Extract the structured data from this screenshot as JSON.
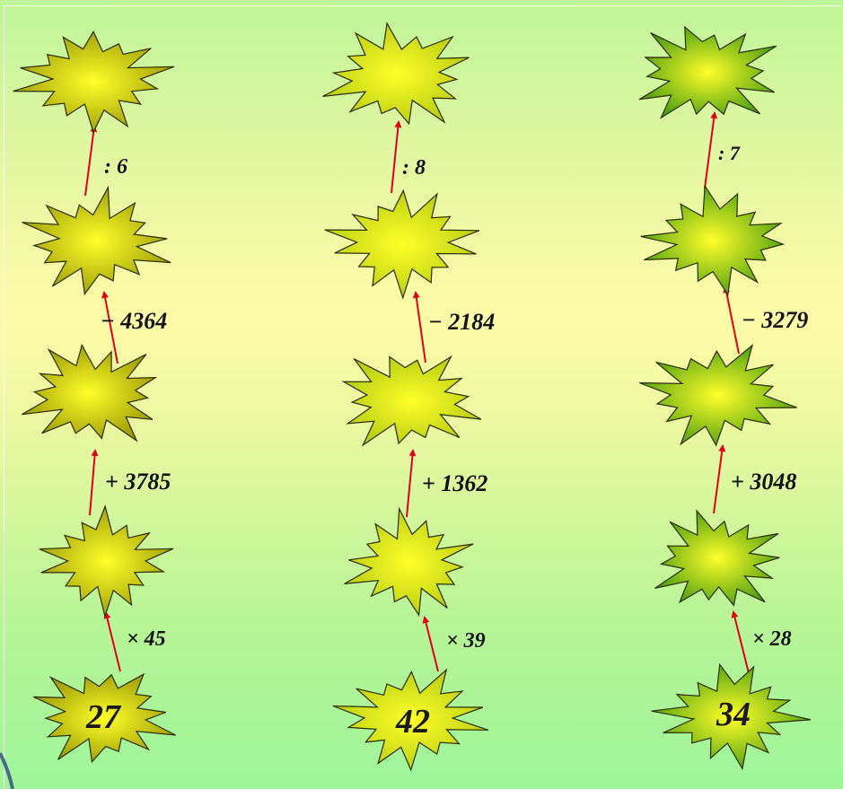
{
  "chains": [
    {
      "start": "27",
      "operations": [
        "× 45",
        "+ 3785",
        "− 4364",
        ": 6"
      ],
      "star_color": "olive-yellow"
    },
    {
      "start": "42",
      "operations": [
        "× 39",
        "+ 1362",
        "− 2184",
        ": 8"
      ],
      "star_color": "lime-yellow"
    },
    {
      "start": "34",
      "operations": [
        "× 28",
        "+ 3048",
        "− 3279",
        ": 7"
      ],
      "star_color": "green"
    }
  ],
  "colors": {
    "arrow": "#e0001a",
    "star_center": "#ffff2a",
    "col1_edge": "#9a9a05",
    "col2_edge": "#b5cc10",
    "col3_edge": "#4a9d10"
  }
}
